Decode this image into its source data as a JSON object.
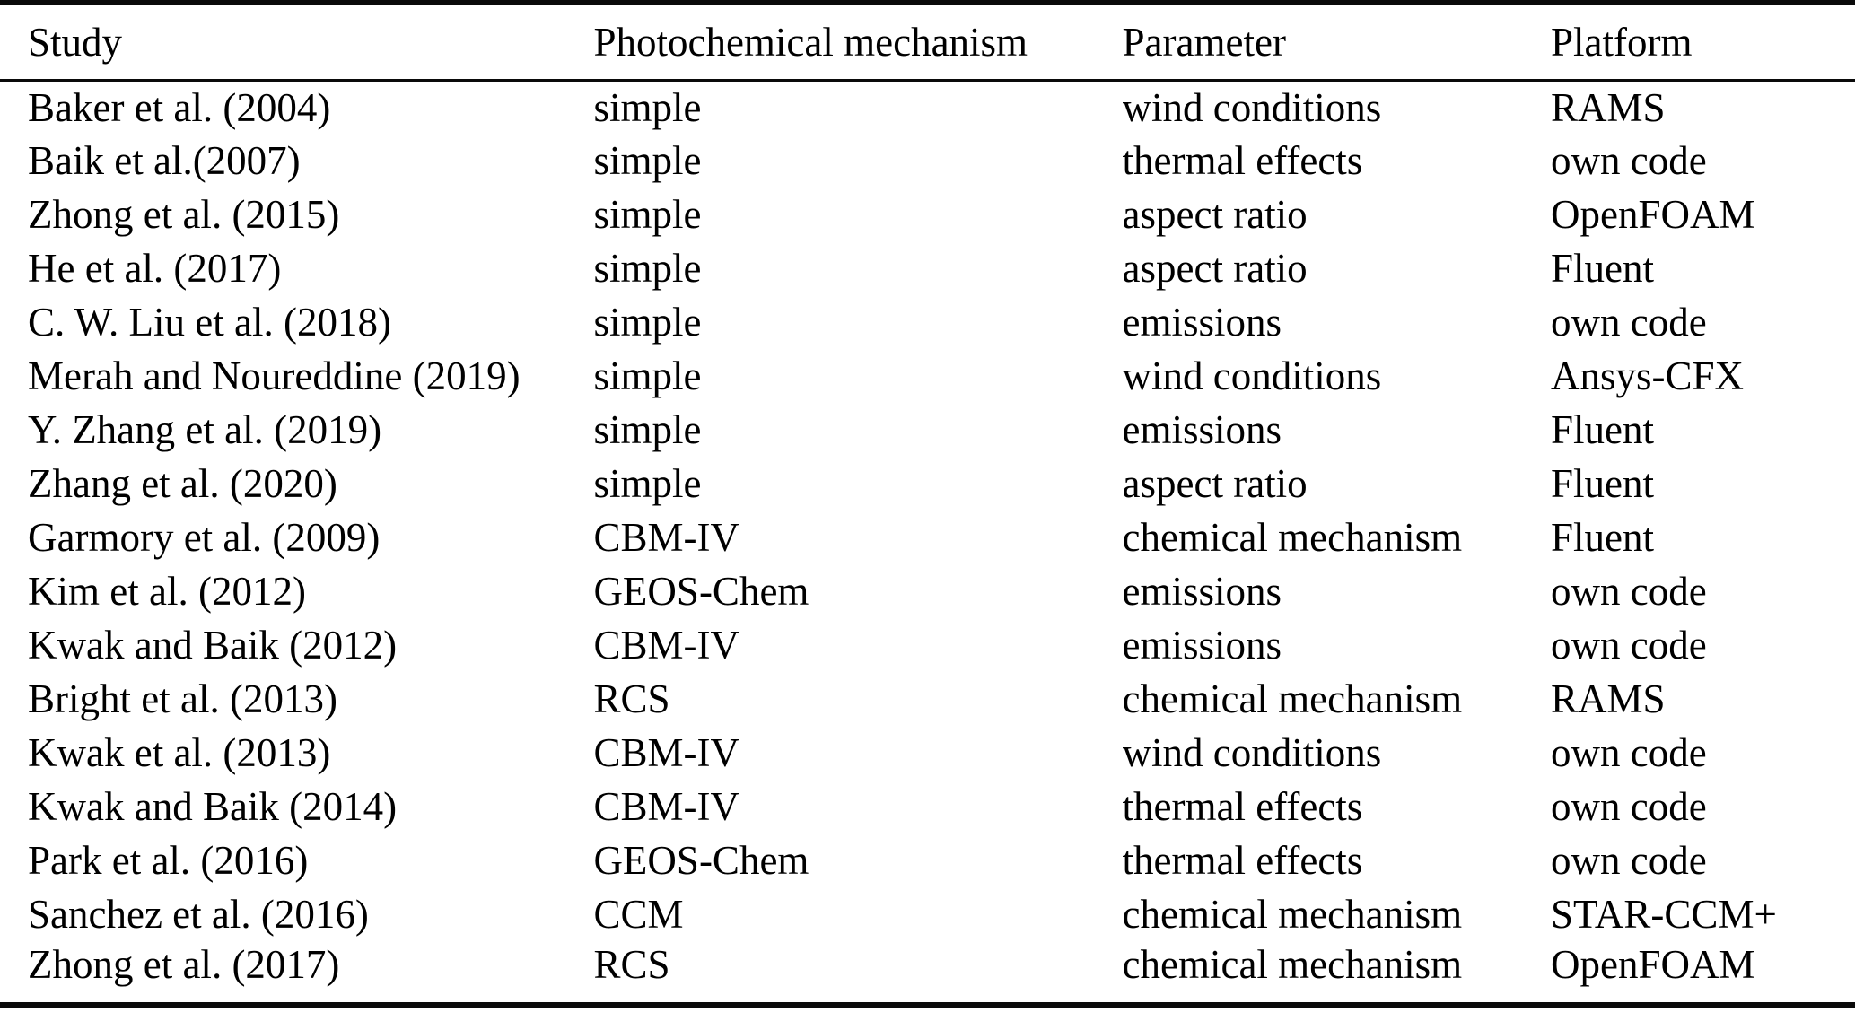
{
  "table": {
    "columns": [
      {
        "key": "study",
        "label": "Study"
      },
      {
        "key": "mechanism",
        "label": "Photochemical mechanism"
      },
      {
        "key": "parameter",
        "label": "Parameter"
      },
      {
        "key": "platform",
        "label": "Platform"
      }
    ],
    "rows": [
      {
        "study": "Baker et al. (2004)",
        "mechanism": "simple",
        "parameter": "wind conditions",
        "platform": "RAMS"
      },
      {
        "study": "Baik et al.(2007)",
        "mechanism": "simple",
        "parameter": "thermal effects",
        "platform": "own code"
      },
      {
        "study": "Zhong et al. (2015)",
        "mechanism": "simple",
        "parameter": "aspect ratio",
        "platform": "OpenFOAM"
      },
      {
        "study": "He et al. (2017)",
        "mechanism": "simple",
        "parameter": "aspect ratio",
        "platform": "Fluent"
      },
      {
        "study": "C. W. Liu et al. (2018)",
        "mechanism": "simple",
        "parameter": "emissions",
        "platform": "own code"
      },
      {
        "study": "Merah and Noureddine (2019)",
        "mechanism": "simple",
        "parameter": "wind conditions",
        "platform": "Ansys-CFX"
      },
      {
        "study": "Y. Zhang et al. (2019)",
        "mechanism": "simple",
        "parameter": "emissions",
        "platform": "Fluent"
      },
      {
        "study": "Zhang et al. (2020)",
        "mechanism": "simple",
        "parameter": "aspect ratio",
        "platform": "Fluent"
      },
      {
        "study": "Garmory et al. (2009)",
        "mechanism": "CBM-IV",
        "parameter": "chemical mechanism",
        "platform": "Fluent"
      },
      {
        "study": "Kim et al. (2012)",
        "mechanism": "GEOS-Chem",
        "parameter": "emissions",
        "platform": "own code"
      },
      {
        "study": "Kwak and Baik (2012)",
        "mechanism": "CBM-IV",
        "parameter": "emissions",
        "platform": "own code"
      },
      {
        "study": "Bright et al. (2013)",
        "mechanism": "RCS",
        "parameter": "chemical mechanism",
        "platform": "RAMS"
      },
      {
        "study": "Kwak et al. (2013)",
        "mechanism": "CBM-IV",
        "parameter": "wind conditions",
        "platform": "own code"
      },
      {
        "study": "Kwak and Baik (2014)",
        "mechanism": "CBM-IV",
        "parameter": "thermal effects",
        "platform": "own code"
      },
      {
        "study": "Park et al. (2016)",
        "mechanism": "GEOS-Chem",
        "parameter": "thermal effects",
        "platform": "own code"
      },
      {
        "study": "Sanchez et al. (2016)",
        "mechanism": "CCM",
        "parameter": "chemical mechanism",
        "platform": "STAR-CCM+"
      },
      {
        "study": "Zhong et al. (2017)",
        "mechanism": "RCS",
        "parameter": "chemical mechanism",
        "platform": "OpenFOAM"
      }
    ],
    "colors": {
      "rule": "#0a0a0a",
      "text": "#000000",
      "background": "#ffffff"
    }
  }
}
